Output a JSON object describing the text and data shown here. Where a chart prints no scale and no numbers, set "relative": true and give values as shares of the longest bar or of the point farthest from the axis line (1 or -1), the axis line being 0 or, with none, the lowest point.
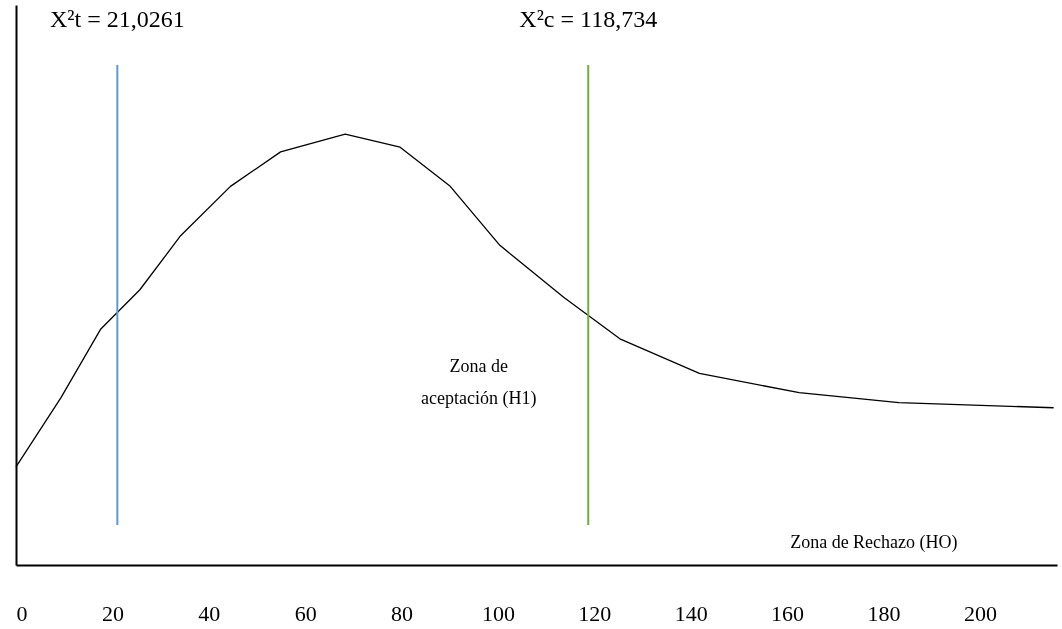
{
  "chart_data": {
    "type": "line",
    "relative": true,
    "x": [
      0,
      9.3,
      17.6,
      25.7,
      34.2,
      44.5,
      54.9,
      68.3,
      79.7,
      90.1,
      100.4,
      113.7,
      125.3,
      141.8,
      162.5,
      183.2,
      215.3
    ],
    "series": [
      {
        "color": "#000000",
        "values": [
          0.228,
          0.388,
          0.548,
          0.639,
          0.765,
          0.879,
          0.959,
          1,
          0.97,
          0.879,
          0.742,
          0.621,
          0.525,
          0.445,
          0.4,
          0.377,
          0.365
        ]
      }
    ],
    "xlim": [
      0,
      216
    ],
    "xticks": [
      0,
      20,
      40,
      60,
      80,
      100,
      120,
      140,
      160,
      180,
      200
    ],
    "ref_lines": [
      {
        "axis": "x",
        "value": 21.0261,
        "label": "X²t = 21,0261",
        "color": "#5b9bd5"
      },
      {
        "axis": "x",
        "value": 118.734,
        "label": "X²c = 118,734",
        "color": "#70ad47"
      }
    ],
    "annotations": [
      "Zona de aceptación (H1)",
      "Zona de Rechazo (HO)"
    ],
    "grid": false,
    "marker": "none",
    "line_style": "solid"
  }
}
